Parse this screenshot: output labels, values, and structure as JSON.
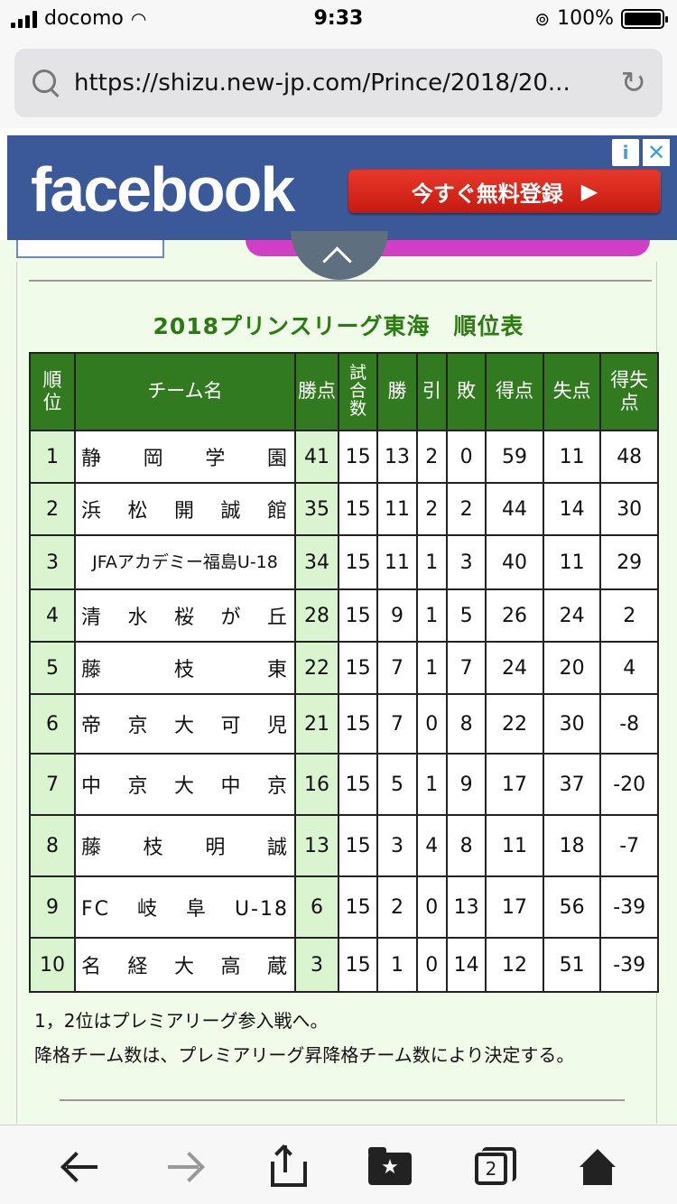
{
  "status_bar": {
    "carrier": "docomo",
    "time": "9:33",
    "battery": "100%"
  },
  "browser": {
    "url": "https://shizu.new-jp.com/Prince/2018/20..."
  },
  "ad": {
    "brand": "facebook",
    "cta_label": "今すぐ無料登録",
    "cta_arrow": "▶",
    "info_icon": "i",
    "close_icon": "✕"
  },
  "table": {
    "title": "2018プリンスリーグ東海　順位表",
    "headers": {
      "rank": "順\n位",
      "team": "チーム名",
      "points": "勝点",
      "played": "試\n合\n数",
      "wins": "勝",
      "draws": "引",
      "losses": "敗",
      "goals_for": "得点",
      "goals_against": "失点",
      "goal_diff": "得失\n点"
    },
    "rows": [
      {
        "rank": "1",
        "team": "静　岡　学　園",
        "points": "41",
        "played": "15",
        "wins": "13",
        "draws": "2",
        "losses": "0",
        "gf": "59",
        "ga": "11",
        "gd": "48"
      },
      {
        "rank": "2",
        "team": "浜　松　開　誠　館",
        "points": "35",
        "played": "15",
        "wins": "11",
        "draws": "2",
        "losses": "2",
        "gf": "44",
        "ga": "14",
        "gd": "30"
      },
      {
        "rank": "3",
        "team": "JFAアカデミー福島U-18",
        "points": "34",
        "played": "15",
        "wins": "11",
        "draws": "1",
        "losses": "3",
        "gf": "40",
        "ga": "11",
        "gd": "29"
      },
      {
        "rank": "4",
        "team": "清　水　桜　が　丘",
        "points": "28",
        "played": "15",
        "wins": "9",
        "draws": "1",
        "losses": "5",
        "gf": "26",
        "ga": "24",
        "gd": "2"
      },
      {
        "rank": "5",
        "team": "藤　枝　東",
        "points": "22",
        "played": "15",
        "wins": "7",
        "draws": "1",
        "losses": "7",
        "gf": "24",
        "ga": "20",
        "gd": "4"
      },
      {
        "rank": "6",
        "team": "帝　京　大　可　児",
        "points": "21",
        "played": "15",
        "wins": "7",
        "draws": "0",
        "losses": "8",
        "gf": "22",
        "ga": "30",
        "gd": "-8"
      },
      {
        "rank": "7",
        "team": "中　京　大　中　京",
        "points": "16",
        "played": "15",
        "wins": "5",
        "draws": "1",
        "losses": "9",
        "gf": "17",
        "ga": "37",
        "gd": "-20"
      },
      {
        "rank": "8",
        "team": "藤　枝　明　誠",
        "points": "13",
        "played": "15",
        "wins": "3",
        "draws": "4",
        "losses": "8",
        "gf": "11",
        "ga": "18",
        "gd": "-7"
      },
      {
        "rank": "9",
        "team": "FC　岐　阜　U-18",
        "points": "6",
        "played": "15",
        "wins": "2",
        "draws": "0",
        "losses": "13",
        "gf": "17",
        "ga": "56",
        "gd": "-39"
      },
      {
        "rank": "10",
        "team": "名　経　大　高　蔵",
        "points": "3",
        "played": "15",
        "wins": "1",
        "draws": "0",
        "losses": "14",
        "gf": "12",
        "ga": "51",
        "gd": "-39"
      }
    ]
  },
  "notes": [
    "1，2位はプレミアリーグ参入戦へ。",
    "降格チーム数は、プレミアリーグ昇降格チーム数により決定する。"
  ],
  "toolbar": {
    "tab_count": "2",
    "bookmark_star": "★"
  },
  "colors": {
    "header_green": "#317a1f",
    "rank_cell_green": "#d9f4cf",
    "title_green": "#2c7a12",
    "facebook_blue": "#3b5998"
  }
}
